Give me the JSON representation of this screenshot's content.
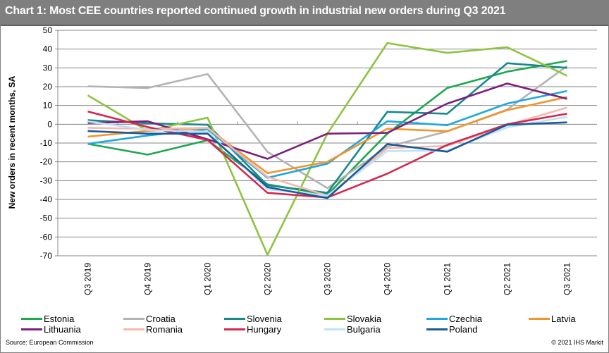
{
  "header": {
    "title": "Chart 1: Most CEE countries reported continued growth in industrial  new orders during Q3 2021"
  },
  "footer": {
    "source": "Source: European  Commission",
    "copyright": "© 2021  IHS Markit"
  },
  "chart_data": {
    "type": "line",
    "title": "Chart 1: Most CEE countries reported continued growth in industrial  new orders during Q3 2021",
    "xlabel": "",
    "ylabel": "New orders in recent months, SA",
    "ylim": [
      -70,
      50
    ],
    "yticks": [
      50,
      40,
      30,
      20,
      10,
      0,
      -10,
      -20,
      -30,
      -40,
      -50,
      -60,
      -70
    ],
    "grid": true,
    "legend_position": "bottom",
    "categories": [
      "Q3 2019",
      "Q4 2019",
      "Q1 2020",
      "Q2 2020",
      "Q3 2020",
      "Q4 2020",
      "Q1 2021",
      "Q2 2021",
      "Q3 2021"
    ],
    "series": [
      {
        "name": "Estonia",
        "color": "#1fa84f",
        "values": [
          -10.4,
          -16.2,
          -8.5,
          -32.0,
          -37.5,
          -5.0,
          19.3,
          28.0,
          33.7
        ]
      },
      {
        "name": "Croatia",
        "color": "#b3b3b3",
        "values": [
          20.2,
          19.3,
          26.7,
          -14.7,
          -34.0,
          -12.0,
          -3.8,
          7.8,
          31.0
        ]
      },
      {
        "name": "Slovenia",
        "color": "#168a8a",
        "values": [
          2.2,
          0.5,
          -0.3,
          -32.5,
          -36.5,
          6.6,
          5.6,
          32.5,
          30.0
        ]
      },
      {
        "name": "Slovakia",
        "color": "#8dc43f",
        "values": [
          15.4,
          -3.5,
          3.5,
          -69.5,
          -5.0,
          43.2,
          38.0,
          41.0,
          25.8
        ]
      },
      {
        "name": "Czechia",
        "color": "#1ea7e1",
        "values": [
          -10.4,
          -6.0,
          -2.7,
          -28.5,
          -21.0,
          1.6,
          -0.5,
          11.0,
          17.7
        ]
      },
      {
        "name": "Latvia",
        "color": "#f0962d",
        "values": [
          -6.6,
          -3.5,
          -2.0,
          -26.0,
          -20.0,
          -2.4,
          -3.7,
          7.5,
          14.5
        ]
      },
      {
        "name": "Lithuania",
        "color": "#7b1f7e",
        "values": [
          0.7,
          1.6,
          -8.0,
          -18.4,
          -5.0,
          -4.6,
          11.0,
          21.7,
          13.5
        ]
      },
      {
        "name": "Romania",
        "color": "#f5b8b0",
        "values": [
          -1.9,
          -2.5,
          -1.9,
          -28.0,
          -38.0,
          -12.8,
          -11.5,
          -0.5,
          8.9
        ]
      },
      {
        "name": "Hungary",
        "color": "#d6274f",
        "values": [
          6.8,
          -1.5,
          -8.4,
          -36.5,
          -39.0,
          -26.3,
          -11.0,
          0.0,
          5.6
        ]
      },
      {
        "name": "Bulgaria",
        "color": "#bfe3f5",
        "values": [
          1.5,
          -3.0,
          -4.0,
          -34.6,
          -38.0,
          -14.3,
          -14.0,
          -1.7,
          4.0
        ]
      },
      {
        "name": "Poland",
        "color": "#1b5a96",
        "values": [
          -3.6,
          -5.0,
          -5.0,
          -33.5,
          -39.3,
          -10.6,
          -14.6,
          -0.3,
          1.0
        ]
      }
    ]
  }
}
